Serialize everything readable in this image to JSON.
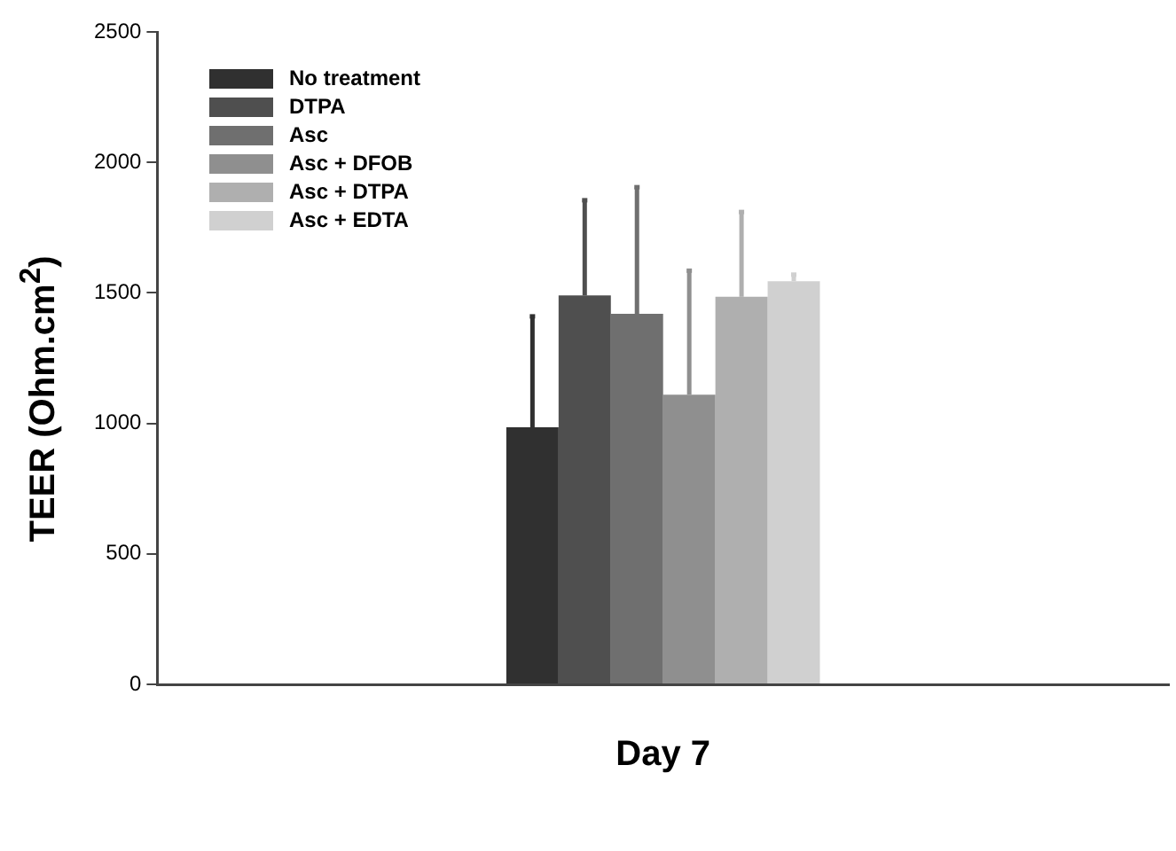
{
  "chart_data": {
    "type": "bar",
    "ylabel": "TEER (Ohm.cm$^{2}$)",
    "categories": [
      "Day 7"
    ],
    "series": [
      {
        "name": "No treatment",
        "color": "#303030",
        "values": [
          985
        ],
        "errors": [
          [
            985,
            1410
          ]
        ]
      },
      {
        "name": "DTPA",
        "color": "#4f4f4f",
        "values": [
          1490
        ],
        "errors": [
          [
            1490,
            1855
          ]
        ]
      },
      {
        "name": "Asc",
        "color": "#6f6f6f",
        "values": [
          1420
        ],
        "errors": [
          [
            1420,
            1905
          ]
        ]
      },
      {
        "name": "Asc + DFOB",
        "color": "#8f8f8f",
        "values": [
          1110
        ],
        "errors": [
          [
            1110,
            1585
          ]
        ]
      },
      {
        "name": "Asc + DTPA",
        "color": "#afafaf",
        "values": [
          1485
        ],
        "errors": [
          [
            1485,
            1810
          ]
        ]
      },
      {
        "name": "Asc + EDTA",
        "color": "#d0d0d0",
        "values": [
          1545
        ],
        "errors": [
          [
            1545,
            1570
          ]
        ]
      }
    ],
    "ylim": [
      0,
      2500
    ],
    "yticks": [
      0,
      500,
      1000,
      1500,
      2000,
      2500
    ],
    "grid": false,
    "legend": "top left"
  }
}
